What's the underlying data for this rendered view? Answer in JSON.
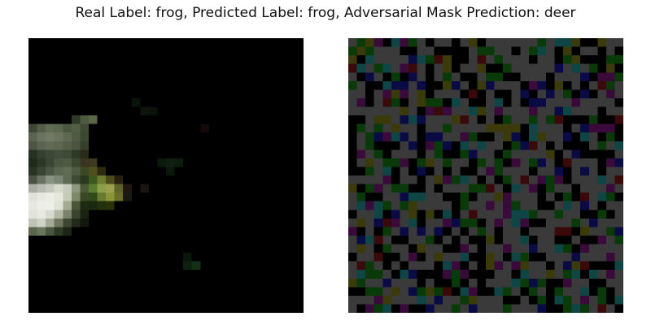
{
  "figure": {
    "title": "Real Label: frog, Predicted Label: frog, Adversarial Mask Prediction: deer",
    "real_label": "frog",
    "predicted_label": "frog",
    "adversarial_mask_prediction": "deer"
  },
  "panels": {
    "original": {
      "description": "32x32 low-resolution image, mostly black with a bright pale blob on the left edge"
    },
    "mask": {
      "description": "32x32 noisy adversarial mask of gray, black, green, teal, purple, navy and olive cells"
    }
  },
  "colors": {
    "background": "#ffffff",
    "mask_palette": [
      "#3a3a3a",
      "#000000",
      "#0a3a0a",
      "#0f4545",
      "#3a0a3a",
      "#0a0a45",
      "#3a3a0a",
      "#3a0a0a"
    ]
  }
}
